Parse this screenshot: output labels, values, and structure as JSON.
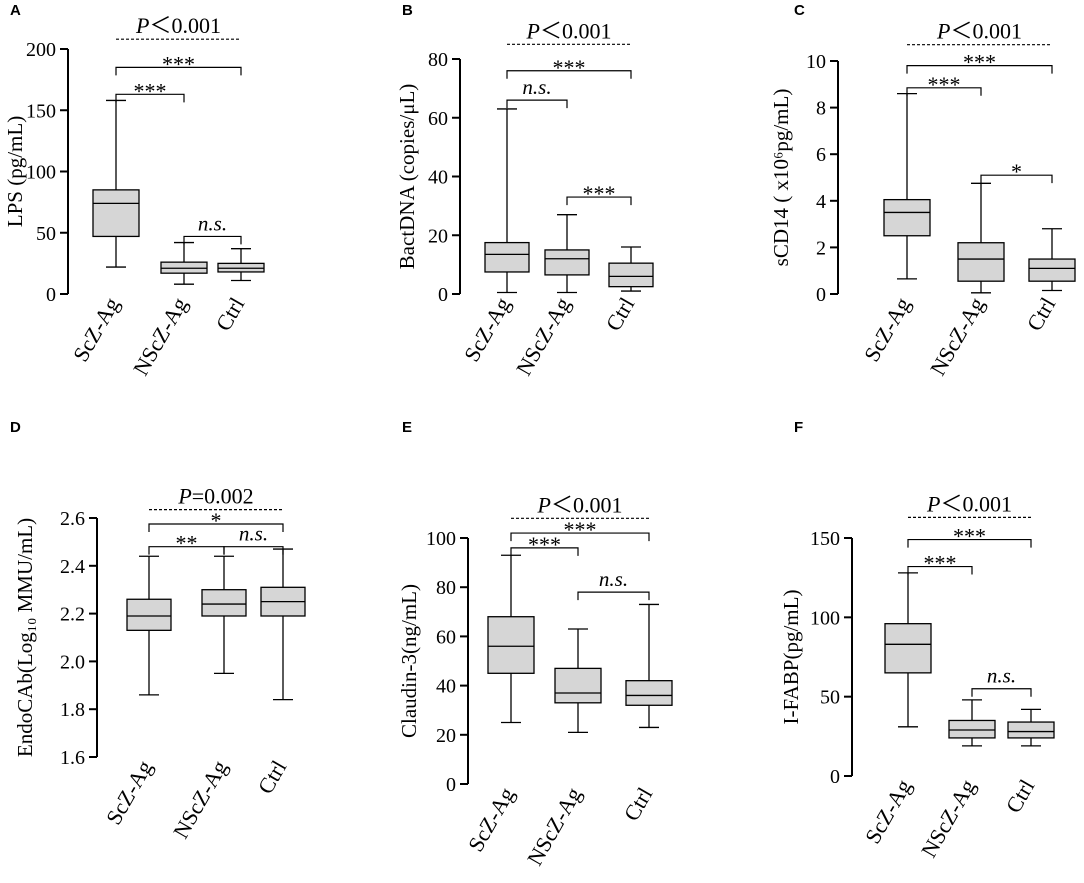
{
  "figure": {
    "categories": [
      "ScZ-Ag",
      "NScZ-Ag",
      "Ctrl"
    ]
  },
  "chart_data": [
    {
      "panel": "A",
      "type": "boxplot",
      "ylabel": "LPS (pg/mL)",
      "ylim": [
        0,
        200
      ],
      "yticks": [
        0,
        50,
        100,
        150,
        200
      ],
      "yticklabels": [
        "0",
        "50",
        "100",
        "150",
        "200"
      ],
      "categories": [
        "ScZ-Ag",
        "NScZ-Ag",
        "Ctrl"
      ],
      "boxes": [
        {
          "min": 22,
          "q1": 47,
          "median": 74,
          "q3": 85,
          "max": 158
        },
        {
          "min": 8,
          "q1": 17,
          "median": 21,
          "q3": 26,
          "max": 42
        },
        {
          "min": 11,
          "q1": 18,
          "median": 21,
          "q3": 25,
          "max": 37
        }
      ],
      "overall": {
        "prefix": "P",
        "text": "＜0.001",
        "y": 208
      },
      "comparisons": [
        {
          "from": 0,
          "to": 2,
          "label": "***",
          "y": 185,
          "italic": false
        },
        {
          "from": 0,
          "to": 1,
          "label": "***",
          "y": 163,
          "italic": false
        },
        {
          "from": 1,
          "to": 2,
          "label": "n.s.",
          "y": 47,
          "italic": true
        }
      ]
    },
    {
      "panel": "B",
      "type": "boxplot",
      "ylabel": "BactDNA (copies/μL)",
      "ylim": [
        0,
        80
      ],
      "yticks": [
        0,
        20,
        40,
        60,
        80
      ],
      "yticklabels": [
        "0",
        "20",
        "40",
        "60",
        "80"
      ],
      "categories": [
        "ScZ-Ag",
        "NScZ-Ag",
        "Ctrl"
      ],
      "boxes": [
        {
          "min": 0.5,
          "q1": 7.5,
          "median": 13.5,
          "q3": 17.5,
          "max": 63
        },
        {
          "min": 0.5,
          "q1": 6.5,
          "median": 12,
          "q3": 15,
          "max": 27
        },
        {
          "min": 1,
          "q1": 2.5,
          "median": 6,
          "q3": 10.5,
          "max": 16
        }
      ],
      "overall": {
        "prefix": "P",
        "text": "＜0.001",
        "y": 85
      },
      "comparisons": [
        {
          "from": 0,
          "to": 2,
          "label": "***",
          "y": 76,
          "italic": false
        },
        {
          "from": 0,
          "to": 1,
          "label": "n.s.",
          "y": 66,
          "italic": true
        },
        {
          "from": 1,
          "to": 2,
          "label": "***",
          "y": 33,
          "italic": false
        }
      ]
    },
    {
      "panel": "C",
      "type": "boxplot",
      "ylabel": "sCD14 ( x10⁶pg/mL)",
      "ylim": [
        0,
        10
      ],
      "yticks": [
        0,
        2,
        4,
        6,
        8,
        10
      ],
      "yticklabels": [
        "0",
        "2",
        "4",
        "6",
        "8",
        "10"
      ],
      "categories": [
        "ScZ-Ag",
        "NScZ-Ag",
        "Ctrl"
      ],
      "boxes": [
        {
          "min": 0.65,
          "q1": 2.5,
          "median": 3.5,
          "q3": 4.05,
          "max": 8.6
        },
        {
          "min": 0.05,
          "q1": 0.55,
          "median": 1.5,
          "q3": 2.2,
          "max": 4.75
        },
        {
          "min": 0.15,
          "q1": 0.55,
          "median": 1.1,
          "q3": 1.5,
          "max": 2.8
        }
      ],
      "overall": {
        "prefix": "P",
        "text": "＜0.001",
        "y": 10.7
      },
      "comparisons": [
        {
          "from": 0,
          "to": 2,
          "label": "***",
          "y": 9.8,
          "italic": false
        },
        {
          "from": 0,
          "to": 1,
          "label": "***",
          "y": 8.85,
          "italic": false
        },
        {
          "from": 1,
          "to": 2,
          "label": "*",
          "y": 5.1,
          "italic": false
        }
      ]
    },
    {
      "panel": "D",
      "type": "boxplot",
      "ylabel": "EndoCAb(Log₁₀ MMU/mL)",
      "ylim": [
        1.6,
        2.6
      ],
      "yticks": [
        1.6,
        1.8,
        2.0,
        2.2,
        2.4,
        2.6
      ],
      "yticklabels": [
        "1.6",
        "1.8",
        "2.0",
        "2.2",
        "2.4",
        "2.6"
      ],
      "categories": [
        "ScZ-Ag",
        "NScZ-Ag",
        "Ctrl"
      ],
      "boxes": [
        {
          "min": 1.86,
          "q1": 2.13,
          "median": 2.19,
          "q3": 2.26,
          "max": 2.44
        },
        {
          "min": 1.95,
          "q1": 2.19,
          "median": 2.24,
          "q3": 2.3,
          "max": 2.44
        },
        {
          "min": 1.84,
          "q1": 2.19,
          "median": 2.25,
          "q3": 2.31,
          "max": 2.47
        }
      ],
      "overall": {
        "prefix": "P",
        "text": "=0.002",
        "y": 2.635
      },
      "comparisons": [
        {
          "from": 0,
          "to": 2,
          "label": "*",
          "y": 2.575,
          "italic": false
        },
        {
          "from": 0,
          "to": 1,
          "label": "**",
          "y": 2.48,
          "italic": false
        },
        {
          "from": 1,
          "to": 2,
          "label": "n.s.",
          "y": 2.48,
          "italic": true
        }
      ]
    },
    {
      "panel": "E",
      "type": "boxplot",
      "ylabel": "Claudin-3(ng/mL)",
      "ylim": [
        0,
        100
      ],
      "yticks": [
        0,
        20,
        40,
        60,
        80,
        100
      ],
      "yticklabels": [
        "0",
        "20",
        "40",
        "60",
        "80",
        "100"
      ],
      "categories": [
        "ScZ-Ag",
        "NScZ-Ag",
        "Ctrl"
      ],
      "boxes": [
        {
          "min": 25,
          "q1": 45,
          "median": 56,
          "q3": 68,
          "max": 93
        },
        {
          "min": 21,
          "q1": 33,
          "median": 37,
          "q3": 47,
          "max": 63
        },
        {
          "min": 23,
          "q1": 32,
          "median": 36,
          "q3": 42,
          "max": 73
        }
      ],
      "overall": {
        "prefix": "P",
        "text": "＜0.001",
        "y": 108
      },
      "comparisons": [
        {
          "from": 0,
          "to": 2,
          "label": "***",
          "y": 102,
          "italic": false
        },
        {
          "from": 0,
          "to": 1,
          "label": "***",
          "y": 96,
          "italic": false
        },
        {
          "from": 1,
          "to": 2,
          "label": "n.s.",
          "y": 78,
          "italic": true
        }
      ]
    },
    {
      "panel": "F",
      "type": "boxplot",
      "ylabel": "I-FABP(pg/mL)",
      "ylim": [
        0,
        150
      ],
      "yticks": [
        0,
        50,
        100,
        150
      ],
      "yticklabels": [
        "0",
        "50",
        "100",
        "150"
      ],
      "categories": [
        "ScZ-Ag",
        "NScZ-Ag",
        "Ctrl"
      ],
      "boxes": [
        {
          "min": 31,
          "q1": 65,
          "median": 83,
          "q3": 96,
          "max": 128
        },
        {
          "min": 19,
          "q1": 24,
          "median": 29,
          "q3": 35,
          "max": 48
        },
        {
          "min": 19,
          "q1": 24,
          "median": 28,
          "q3": 34,
          "max": 42
        }
      ],
      "overall": {
        "prefix": "P",
        "text": "＜0.001",
        "y": 163
      },
      "comparisons": [
        {
          "from": 0,
          "to": 2,
          "label": "***",
          "y": 149,
          "italic": false
        },
        {
          "from": 0,
          "to": 1,
          "label": "***",
          "y": 132,
          "italic": false
        },
        {
          "from": 1,
          "to": 2,
          "label": "n.s.",
          "y": 55,
          "italic": true
        }
      ]
    }
  ]
}
